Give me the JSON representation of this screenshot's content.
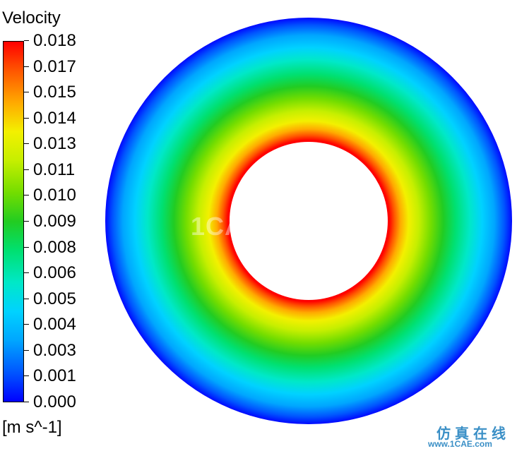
{
  "legend": {
    "title": "Velocity",
    "units": "[m s^-1]",
    "ticks": [
      "0.018",
      "0.017",
      "0.015",
      "0.014",
      "0.013",
      "0.011",
      "0.010",
      "0.009",
      "0.008",
      "0.006",
      "0.005",
      "0.004",
      "0.003",
      "0.001",
      "0.000"
    ],
    "colormap": [
      "#0000ff",
      "#00a6ff",
      "#00e8c8",
      "#22cc22",
      "#f3f000",
      "#ffaa00",
      "#ff0000"
    ]
  },
  "contour": {
    "description_colors": {
      "inner_edge": "#ff2a00",
      "outer_edge": "#0000ff",
      "hole": "#ffffff"
    }
  },
  "watermark": {
    "center_text": "1CAE.COM",
    "cn_text": "仿真在线",
    "url_text": "www.1CAE.com"
  }
}
